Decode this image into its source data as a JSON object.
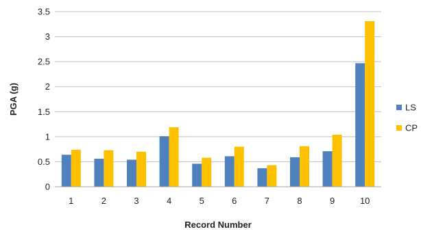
{
  "chart_data": {
    "type": "bar",
    "categories": [
      "1",
      "2",
      "3",
      "4",
      "5",
      "6",
      "7",
      "8",
      "9",
      "10"
    ],
    "series": [
      {
        "name": "LS",
        "color": "#4f81bd",
        "values": [
          0.64,
          0.56,
          0.54,
          1.01,
          0.46,
          0.61,
          0.37,
          0.59,
          0.71,
          2.47
        ]
      },
      {
        "name": "CP",
        "color": "#ffc000",
        "values": [
          0.74,
          0.73,
          0.7,
          1.19,
          0.58,
          0.8,
          0.43,
          0.81,
          1.04,
          3.31
        ]
      }
    ],
    "xlabel": "Record Number",
    "ylabel": "PGA (g)",
    "ylim": [
      0,
      3.5
    ],
    "yticks": [
      "0",
      "0.5",
      "1",
      "1.5",
      "2",
      "2.5",
      "3",
      "3.5"
    ],
    "grid": true,
    "legend_position": "right"
  }
}
